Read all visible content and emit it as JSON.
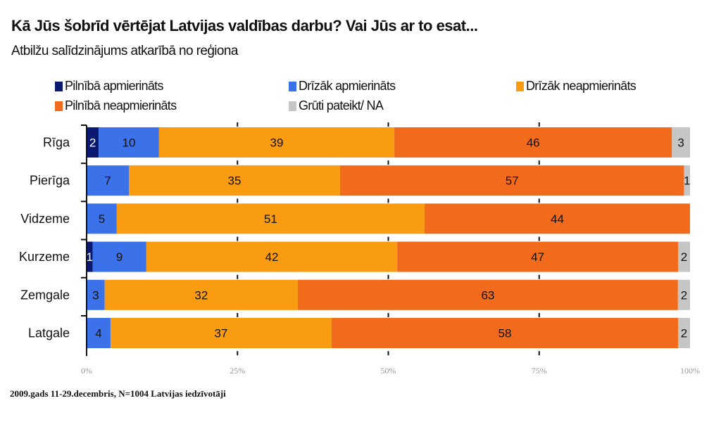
{
  "chart_data": {
    "type": "bar",
    "orientation": "horizontal",
    "stacked": "percent",
    "title": "Kā Jūs šobrīd vērtējat Latvijas valdības darbu? Vai Jūs ar to esat...",
    "subtitle": "Atbilžu salīdzinājums atkarībā no reģiona",
    "categories": [
      "Rīga",
      "Pierīga",
      "Vidzeme",
      "Kurzeme",
      "Zemgale",
      "Latgale"
    ],
    "series": [
      {
        "name": "Pilnībā apmierināts",
        "color": "#0b1a70",
        "values": [
          2,
          0,
          0,
          1,
          0,
          0
        ]
      },
      {
        "name": "Drīzāk apmierināts",
        "color": "#3b72ea",
        "values": [
          10,
          7,
          5,
          9,
          3,
          4
        ]
      },
      {
        "name": "Drīzāk neapmierināts",
        "color": "#f99c12",
        "values": [
          39,
          35,
          51,
          42,
          32,
          37
        ]
      },
      {
        "name": "Pilnībā neapmierināts",
        "color": "#f26a1c",
        "values": [
          46,
          57,
          44,
          47,
          63,
          58
        ]
      },
      {
        "name": "Grūti pateikt/ NA",
        "color": "#c6c6c6",
        "values": [
          3,
          1,
          0,
          2,
          2,
          2
        ]
      }
    ],
    "xticks": [
      "0%",
      "25%",
      "50%",
      "75%",
      "100%"
    ],
    "xlim": [
      0,
      100
    ],
    "legend": "top",
    "grid": false
  },
  "footer": "2009.gads 11-29.decembris, N=1004 Latvijas iedzīvotāji"
}
